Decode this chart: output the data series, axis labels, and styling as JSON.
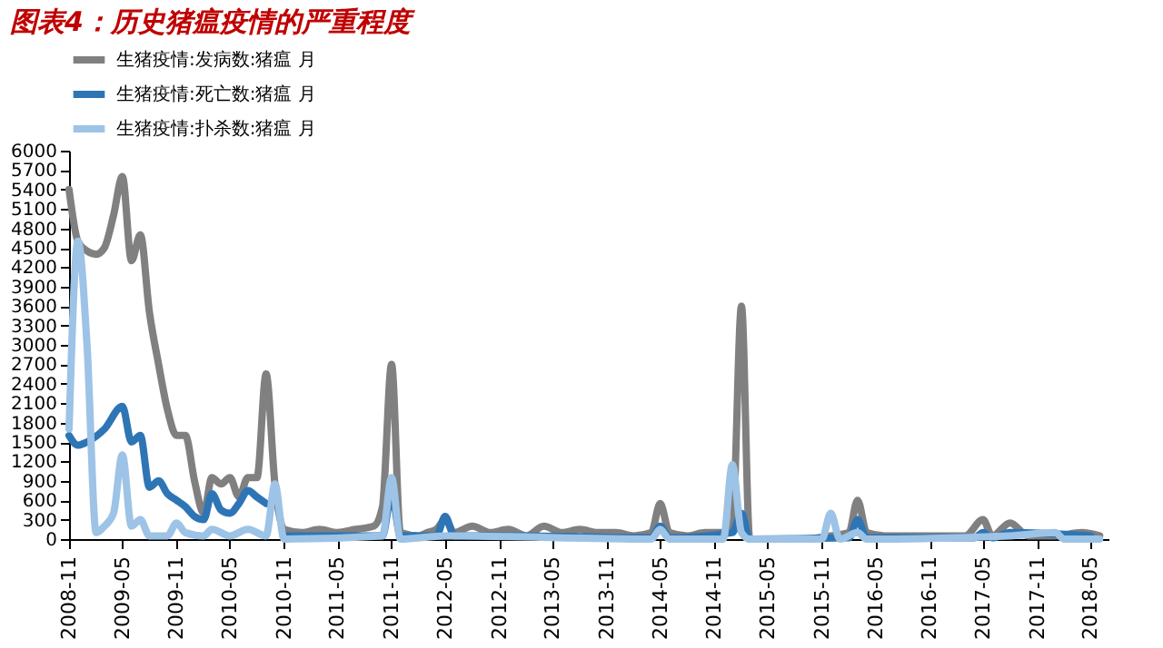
{
  "chart_data": {
    "type": "line",
    "title": "图表4：历史猪瘟疫情的严重程度",
    "series": [
      {
        "name": "生猪疫情:发病数:猪瘟 月",
        "color": "#808080",
        "x": [
          "2008-11",
          "2008-12",
          "2009-01",
          "2009-02",
          "2009-03",
          "2009-04",
          "2009-05",
          "2009-06",
          "2009-07",
          "2009-08",
          "2009-09",
          "2009-10",
          "2009-11",
          "2009-12",
          "2010-01",
          "2010-02",
          "2010-03",
          "2010-04",
          "2010-05",
          "2010-06",
          "2010-07",
          "2010-08",
          "2010-09",
          "2010-10",
          "2010-11",
          "2011-01",
          "2011-03",
          "2011-05",
          "2011-07",
          "2011-09",
          "2011-10",
          "2011-11",
          "2011-12",
          "2012-02",
          "2012-03",
          "2012-04",
          "2012-05",
          "2012-06",
          "2012-08",
          "2012-10",
          "2012-12",
          "2013-02",
          "2013-04",
          "2013-06",
          "2013-08",
          "2013-10",
          "2013-12",
          "2014-02",
          "2014-04",
          "2014-05",
          "2014-06",
          "2014-08",
          "2014-10",
          "2014-12",
          "2015-01",
          "2015-02",
          "2015-03",
          "2015-06",
          "2015-09",
          "2015-12",
          "2016-02",
          "2016-03",
          "2016-04",
          "2016-06",
          "2016-09",
          "2016-12",
          "2017-03",
          "2017-05",
          "2017-06",
          "2017-08",
          "2017-10",
          "2018-01",
          "2018-04",
          "2018-06"
        ],
        "values": [
          5400,
          4600,
          4450,
          4400,
          4500,
          5000,
          5600,
          4300,
          4700,
          3500,
          2700,
          2000,
          1600,
          1600,
          900,
          400,
          950,
          850,
          950,
          650,
          950,
          950,
          2550,
          850,
          150,
          100,
          150,
          100,
          150,
          200,
          500,
          2700,
          100,
          50,
          100,
          150,
          300,
          100,
          200,
          100,
          150,
          50,
          200,
          100,
          150,
          100,
          100,
          50,
          100,
          550,
          100,
          50,
          100,
          100,
          200,
          3600,
          0,
          0,
          0,
          50,
          100,
          600,
          100,
          50,
          50,
          50,
          50,
          300,
          50,
          250,
          50,
          50,
          100,
          50
        ]
      },
      {
        "name": "生猪疫情:死亡数:猪瘟 月",
        "color": "#2e75b6",
        "x": [
          "2008-11",
          "2008-12",
          "2009-01",
          "2009-03",
          "2009-05",
          "2009-06",
          "2009-07",
          "2009-08",
          "2009-09",
          "2009-10",
          "2009-11",
          "2009-12",
          "2010-01",
          "2010-02",
          "2010-03",
          "2010-04",
          "2010-05",
          "2010-06",
          "2010-07",
          "2010-08",
          "2010-09",
          "2010-10",
          "2010-11",
          "2011-03",
          "2011-10",
          "2011-11",
          "2011-12",
          "2012-04",
          "2012-05",
          "2012-06",
          "2013-01",
          "2014-04",
          "2014-05",
          "2014-06",
          "2015-01",
          "2015-02",
          "2015-03",
          "2016-02",
          "2016-03",
          "2016-04",
          "2017-04",
          "2017-05",
          "2017-06",
          "2017-08",
          "2018-05"
        ],
        "values": [
          1600,
          1450,
          1500,
          1700,
          2050,
          1500,
          1600,
          800,
          900,
          700,
          600,
          500,
          350,
          300,
          700,
          450,
          400,
          550,
          750,
          650,
          550,
          null,
          50,
          50,
          50,
          700,
          50,
          50,
          350,
          50,
          50,
          20,
          200,
          20,
          100,
          400,
          0,
          20,
          300,
          20,
          20,
          100,
          20,
          100,
          50
        ]
      },
      {
        "name": "生猪疫情:扑杀数:猪瘟 月",
        "color": "#9dc3e6",
        "x": [
          "2008-11",
          "2008-12",
          "2009-01",
          "2009-02",
          "2009-03",
          "2009-04",
          "2009-05",
          "2009-06",
          "2009-07",
          "2009-08",
          "2009-10",
          "2009-11",
          "2009-12",
          "2010-02",
          "2010-03",
          "2010-05",
          "2010-07",
          "2010-09",
          "2010-10",
          "2010-11",
          "2011-10",
          "2011-11",
          "2011-12",
          "2012-05",
          "2014-04",
          "2014-05",
          "2014-06",
          "2014-12",
          "2015-01",
          "2015-02",
          "2015-03",
          "2015-11",
          "2015-12",
          "2016-01",
          "2016-03",
          "2016-04",
          "2017-08",
          "2018-01",
          "2018-02",
          "2018-06"
        ],
        "values": [
          1700,
          4600,
          3000,
          100,
          200,
          400,
          1300,
          200,
          300,
          50,
          50,
          250,
          100,
          50,
          150,
          50,
          150,
          50,
          850,
          0,
          50,
          950,
          0,
          50,
          0,
          150,
          0,
          0,
          1150,
          100,
          0,
          0,
          400,
          0,
          100,
          0,
          50,
          100,
          0,
          0
        ]
      }
    ],
    "xlim": [
      "2008-11",
      "2018-07"
    ],
    "xticks": [
      "2008-11",
      "2009-05",
      "2009-11",
      "2010-05",
      "2010-11",
      "2011-05",
      "2011-11",
      "2012-05",
      "2012-11",
      "2013-05",
      "2013-11",
      "2014-05",
      "2014-11",
      "2015-05",
      "2015-11",
      "2016-05",
      "2016-11",
      "2017-05",
      "2017-11",
      "2018-05"
    ],
    "ylim": [
      0,
      6000
    ],
    "yticks": [
      0,
      300,
      600,
      900,
      1200,
      1500,
      1800,
      2100,
      2400,
      2700,
      3000,
      3300,
      3600,
      3900,
      4200,
      4500,
      4800,
      5100,
      5400,
      5700,
      6000
    ],
    "grid": false,
    "legend": "top",
    "line_style": "solid",
    "marker": "none"
  }
}
